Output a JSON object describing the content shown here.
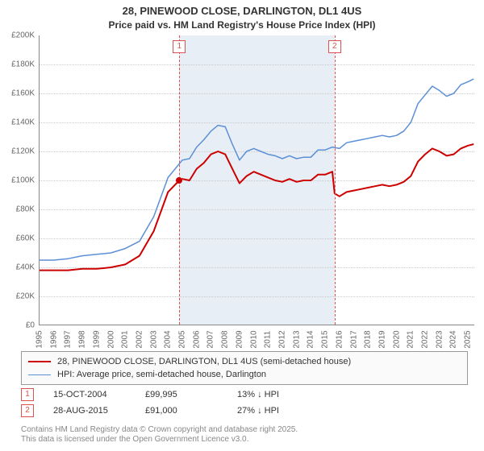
{
  "title_line1": "28, PINEWOOD CLOSE, DARLINGTON, DL1 4US",
  "title_line2": "Price paid vs. HM Land Registry's House Price Index (HPI)",
  "chart": {
    "type": "line",
    "x_min": 1995,
    "x_max": 2025.5,
    "y_min": 0,
    "y_max": 200000,
    "y_tick_step": 20000,
    "y_tick_fmt": "£K",
    "x_ticks": [
      1995,
      1996,
      1997,
      1998,
      1999,
      2000,
      2001,
      2002,
      2003,
      2004,
      2005,
      2006,
      2007,
      2008,
      2009,
      2010,
      2011,
      2012,
      2013,
      2014,
      2015,
      2016,
      2017,
      2018,
      2019,
      2020,
      2021,
      2022,
      2023,
      2024,
      2025
    ],
    "grid_color": "#cccccc",
    "background_color": "#ffffff",
    "plot_bands": [
      {
        "from": 2004.79,
        "to": 2015.66,
        "color": "#e8eef5"
      }
    ],
    "series": [
      {
        "name": "price_paid",
        "label": "28, PINEWOOD CLOSE, DARLINGTON, DL1 4US (semi-detached house)",
        "color": "#cc0000",
        "line_width": 2,
        "data": [
          [
            1995,
            38000
          ],
          [
            1996,
            38000
          ],
          [
            1997,
            38000
          ],
          [
            1998,
            39000
          ],
          [
            1999,
            39000
          ],
          [
            2000,
            40000
          ],
          [
            2001,
            42000
          ],
          [
            2002,
            48000
          ],
          [
            2003,
            65000
          ],
          [
            2004,
            92000
          ],
          [
            2004.79,
            99995
          ],
          [
            2005,
            101000
          ],
          [
            2005.5,
            100000
          ],
          [
            2006,
            108000
          ],
          [
            2006.5,
            112000
          ],
          [
            2007,
            118000
          ],
          [
            2007.5,
            120000
          ],
          [
            2008,
            118000
          ],
          [
            2008.5,
            108000
          ],
          [
            2009,
            98000
          ],
          [
            2009.5,
            103000
          ],
          [
            2010,
            106000
          ],
          [
            2010.5,
            104000
          ],
          [
            2011,
            102000
          ],
          [
            2011.5,
            100000
          ],
          [
            2012,
            99000
          ],
          [
            2012.5,
            101000
          ],
          [
            2013,
            99000
          ],
          [
            2013.5,
            100000
          ],
          [
            2014,
            100000
          ],
          [
            2014.5,
            104000
          ],
          [
            2015,
            104000
          ],
          [
            2015.5,
            106000
          ],
          [
            2015.66,
            91000
          ],
          [
            2016,
            89000
          ],
          [
            2016.5,
            92000
          ],
          [
            2017,
            93000
          ],
          [
            2017.5,
            94000
          ],
          [
            2018,
            95000
          ],
          [
            2018.5,
            96000
          ],
          [
            2019,
            97000
          ],
          [
            2019.5,
            96000
          ],
          [
            2020,
            97000
          ],
          [
            2020.5,
            99000
          ],
          [
            2021,
            103000
          ],
          [
            2021.5,
            113000
          ],
          [
            2022,
            118000
          ],
          [
            2022.5,
            122000
          ],
          [
            2023,
            120000
          ],
          [
            2023.5,
            117000
          ],
          [
            2024,
            118000
          ],
          [
            2024.5,
            122000
          ],
          [
            2025,
            124000
          ],
          [
            2025.4,
            125000
          ]
        ],
        "markers": [
          {
            "x": 2004.79,
            "y": 99995
          }
        ]
      },
      {
        "name": "hpi",
        "label": "HPI: Average price, semi-detached house, Darlington",
        "color": "#5b8fd6",
        "line_width": 1.5,
        "data": [
          [
            1995,
            45000
          ],
          [
            1996,
            45000
          ],
          [
            1997,
            46000
          ],
          [
            1998,
            48000
          ],
          [
            1999,
            49000
          ],
          [
            2000,
            50000
          ],
          [
            2001,
            53000
          ],
          [
            2002,
            58000
          ],
          [
            2003,
            75000
          ],
          [
            2004,
            102000
          ],
          [
            2005,
            114000
          ],
          [
            2005.5,
            115000
          ],
          [
            2006,
            123000
          ],
          [
            2006.5,
            128000
          ],
          [
            2007,
            134000
          ],
          [
            2007.5,
            138000
          ],
          [
            2008,
            137000
          ],
          [
            2008.5,
            125000
          ],
          [
            2009,
            114000
          ],
          [
            2009.5,
            120000
          ],
          [
            2010,
            122000
          ],
          [
            2010.5,
            120000
          ],
          [
            2011,
            118000
          ],
          [
            2011.5,
            117000
          ],
          [
            2012,
            115000
          ],
          [
            2012.5,
            117000
          ],
          [
            2013,
            115000
          ],
          [
            2013.5,
            116000
          ],
          [
            2014,
            116000
          ],
          [
            2014.5,
            121000
          ],
          [
            2015,
            121000
          ],
          [
            2015.5,
            123000
          ],
          [
            2016,
            122000
          ],
          [
            2016.5,
            126000
          ],
          [
            2017,
            127000
          ],
          [
            2017.5,
            128000
          ],
          [
            2018,
            129000
          ],
          [
            2018.5,
            130000
          ],
          [
            2019,
            131000
          ],
          [
            2019.5,
            130000
          ],
          [
            2020,
            131000
          ],
          [
            2020.5,
            134000
          ],
          [
            2021,
            140000
          ],
          [
            2021.5,
            153000
          ],
          [
            2022,
            159000
          ],
          [
            2022.5,
            165000
          ],
          [
            2023,
            162000
          ],
          [
            2023.5,
            158000
          ],
          [
            2024,
            160000
          ],
          [
            2024.5,
            166000
          ],
          [
            2025,
            168000
          ],
          [
            2025.4,
            170000
          ]
        ]
      }
    ],
    "vertical_markers": [
      {
        "index": "1",
        "x": 2004.79
      },
      {
        "index": "2",
        "x": 2015.66
      }
    ]
  },
  "legend": {
    "items": [
      {
        "color": "#cc0000",
        "width": 2,
        "label": "28, PINEWOOD CLOSE, DARLINGTON, DL1 4US (semi-detached house)"
      },
      {
        "color": "#5b8fd6",
        "width": 1.5,
        "label": "HPI: Average price, semi-detached house, Darlington"
      }
    ]
  },
  "marker_table": [
    {
      "index": "1",
      "date": "15-OCT-2004",
      "price": "£99,995",
      "diff": "13% ↓ HPI"
    },
    {
      "index": "2",
      "date": "28-AUG-2015",
      "price": "£91,000",
      "diff": "27% ↓ HPI"
    }
  ],
  "copyright_line1": "Contains HM Land Registry data © Crown copyright and database right 2025.",
  "copyright_line2": "This data is licensed under the Open Government Licence v3.0."
}
